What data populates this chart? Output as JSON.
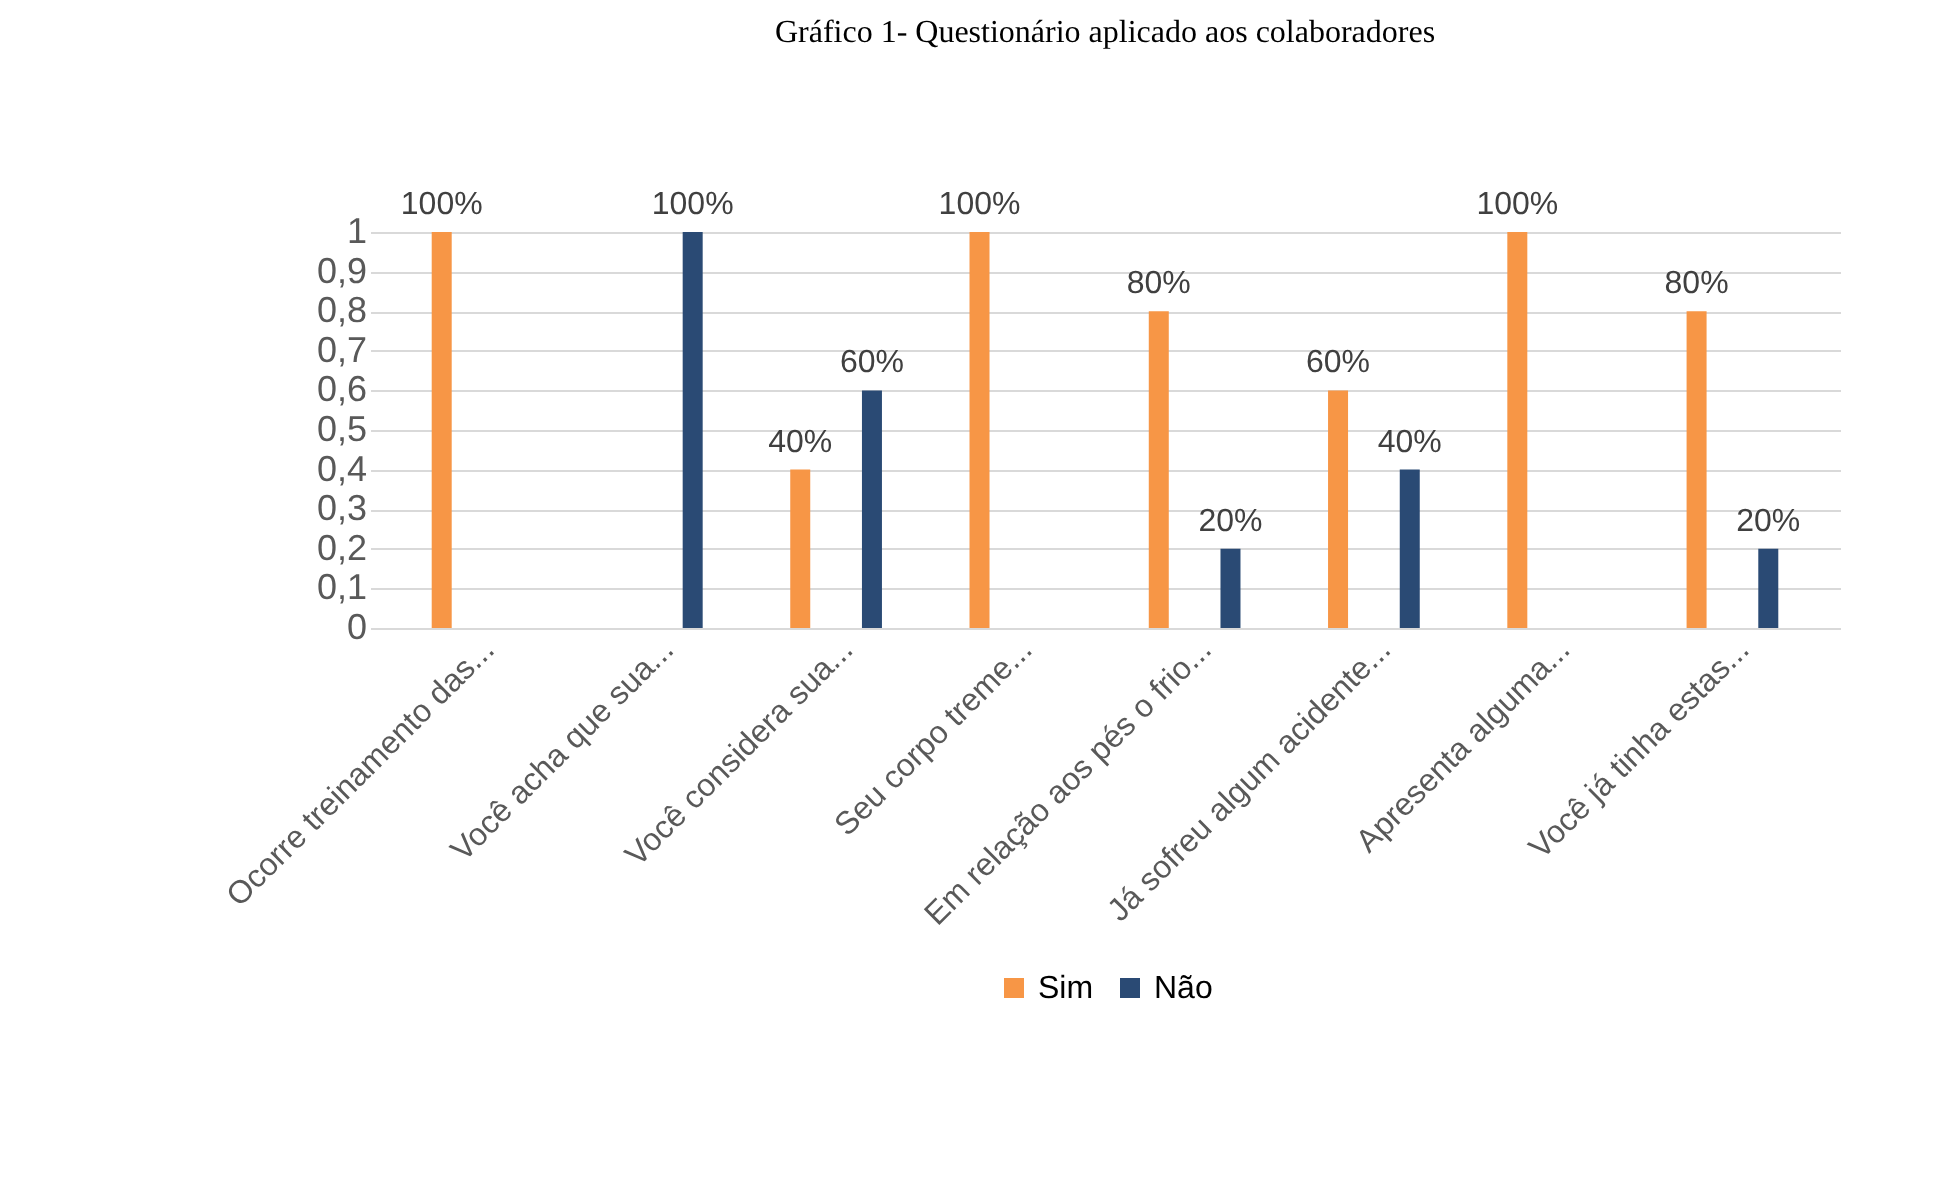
{
  "chart_data": {
    "type": "bar",
    "title": "Gráfico 1- Questionário aplicado aos colaboradores",
    "categories": [
      "Ocorre treinamento das...",
      "Você acha que sua...",
      "Você considera sua...",
      "Seu corpo treme...",
      "Em relação aos pés o frio...",
      "Já sofreu algum acidente...",
      "Apresenta alguma...",
      "Você já tinha estas..."
    ],
    "series": [
      {
        "name": "Sim",
        "color": "#f79646",
        "values": [
          1,
          0,
          0.4,
          1,
          0.8,
          0.6,
          1,
          0.8
        ],
        "value_labels": [
          "100%",
          null,
          "40%",
          "100%",
          "80%",
          "60%",
          "100%",
          "80%"
        ]
      },
      {
        "name": "Não",
        "color": "#2a4a74",
        "values": [
          0,
          1,
          0.6,
          0,
          0.2,
          0.4,
          0,
          0.2
        ],
        "value_labels": [
          null,
          "100%",
          "60%",
          null,
          "20%",
          "40%",
          null,
          "20%"
        ]
      }
    ],
    "ylim": [
      0,
      1
    ],
    "yticks": [
      0,
      {
        "value": 0.1,
        "label": "0,1"
      },
      {
        "value": 0.2,
        "label": "0,2"
      },
      {
        "value": 0.3,
        "label": "0,3"
      },
      {
        "value": 0.4,
        "label": "0,4"
      },
      {
        "value": 0.5,
        "label": "0,5"
      },
      {
        "value": 0.6,
        "label": "0,6"
      },
      {
        "value": 0.7,
        "label": "0,7"
      },
      {
        "value": 0.8,
        "label": "0,8"
      },
      {
        "value": 0.9,
        "label": "0,9"
      },
      1
    ],
    "grid": "y",
    "legend": "bottom"
  }
}
